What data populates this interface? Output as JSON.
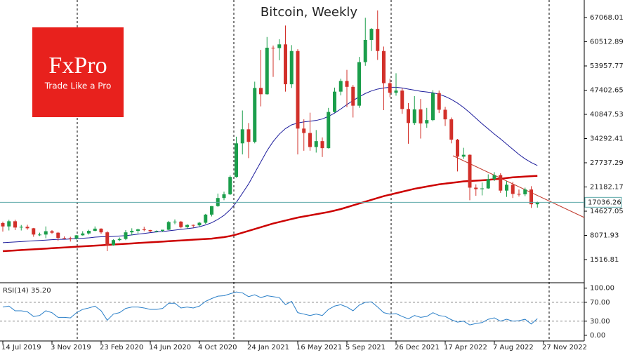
{
  "logo": {
    "brand": "FxPro",
    "tagline": "Trade Like a Pro"
  },
  "chart_data": [
    {
      "type": "candlestick",
      "title": "Bitcoin, Weekly",
      "x": [
        "14 Jul 2019",
        null,
        null,
        null,
        null,
        null,
        null,
        null,
        "3 Nov 2019",
        null,
        null,
        null,
        null,
        null,
        null,
        null,
        "23 Feb 2020",
        null,
        null,
        null,
        null,
        null,
        null,
        null,
        "14 Jun 2020",
        null,
        null,
        null,
        null,
        null,
        null,
        null,
        "4 Oct 2020",
        null,
        null,
        null,
        null,
        null,
        null,
        null,
        "24 Jan 2021",
        null,
        null,
        null,
        null,
        null,
        null,
        null,
        "16 May 2021",
        null,
        null,
        null,
        null,
        null,
        null,
        null,
        "5 Sep 2021",
        null,
        null,
        null,
        null,
        null,
        null,
        null,
        "26 Dec 2021",
        null,
        null,
        null,
        null,
        null,
        null,
        null,
        "17 Apr 2022",
        null,
        null,
        null,
        null,
        null,
        null,
        null,
        "7 Aug 2022",
        null,
        null,
        null,
        null,
        null,
        null,
        null,
        "27 Nov 2022"
      ],
      "open": [
        11400,
        10500,
        11900,
        10200,
        10400,
        10000,
        8300,
        8300,
        9200,
        8800,
        7400,
        7300,
        7200,
        8100,
        8600,
        9300,
        9900,
        8900,
        5400,
        6800,
        7100,
        8900,
        9300,
        9700,
        9500,
        9200,
        9300,
        9600,
        11700,
        11800,
        10300,
        10900,
        10800,
        11500,
        13700,
        16000,
        18200,
        19200,
        23900,
        33000,
        36800,
        33400,
        48000,
        46300,
        58900,
        58800,
        59800,
        49000,
        58000,
        37000,
        35800,
        32000,
        33600,
        31700,
        41500,
        47000,
        49900,
        48300,
        43200,
        55000,
        61000,
        64000,
        58000,
        49300,
        46700,
        47300,
        42300,
        38500,
        42200,
        38400,
        39300,
        46600,
        42100,
        39500,
        34000,
        29400,
        29900,
        21000,
        20600,
        20800,
        23300,
        24400,
        20200,
        21800,
        19300,
        19200,
        20500,
        16500,
        null
      ],
      "high": [
        11800,
        12300,
        12300,
        10900,
        10950,
        10100,
        8800,
        10500,
        9500,
        9000,
        7800,
        7700,
        8200,
        9200,
        9600,
        10500,
        10000,
        9200,
        7000,
        7500,
        9500,
        10000,
        9900,
        10400,
        9600,
        9400,
        9500,
        12000,
        12400,
        12000,
        11100,
        11000,
        11700,
        13900,
        16000,
        19400,
        19900,
        24300,
        34800,
        41900,
        38500,
        49700,
        58300,
        61800,
        59500,
        61200,
        64900,
        59600,
        58500,
        39500,
        41300,
        36600,
        34600,
        42600,
        48100,
        50500,
        52900,
        48800,
        56400,
        67000,
        64200,
        69000,
        59200,
        50500,
        52000,
        47900,
        43900,
        45800,
        45000,
        42600,
        47400,
        47300,
        42900,
        40000,
        34200,
        31800,
        30000,
        21900,
        22400,
        24600,
        25200,
        24900,
        22800,
        22600,
        20500,
        21000,
        21400,
        17200,
        null
      ],
      "low": [
        9100,
        9400,
        9500,
        9400,
        9600,
        7700,
        7900,
        7300,
        8500,
        6600,
        7100,
        6400,
        6900,
        8000,
        8300,
        9200,
        8500,
        3800,
        5300,
        6500,
        6800,
        8100,
        8600,
        9200,
        8900,
        8900,
        9000,
        9500,
        11100,
        10000,
        9900,
        10200,
        10500,
        11200,
        13200,
        15800,
        17600,
        19000,
        23700,
        30000,
        29000,
        33000,
        43000,
        46200,
        51000,
        55500,
        47000,
        48000,
        30000,
        31000,
        31000,
        30500,
        29300,
        31600,
        41300,
        46000,
        42800,
        40000,
        42600,
        54000,
        58000,
        55600,
        42000,
        45500,
        45900,
        41000,
        32900,
        38000,
        34300,
        37200,
        39000,
        41200,
        37700,
        33000,
        25400,
        28800,
        17600,
        18800,
        18900,
        20700,
        22800,
        19600,
        18500,
        18200,
        18600,
        18700,
        15500,
        15600,
        null
      ],
      "close": [
        10500,
        11900,
        10200,
        10400,
        10000,
        8300,
        8300,
        9200,
        8800,
        7400,
        7300,
        7200,
        8100,
        8600,
        9300,
        9900,
        8900,
        5400,
        6800,
        7100,
        8900,
        9300,
        9700,
        9500,
        9200,
        9300,
        9600,
        11700,
        11800,
        10300,
        10900,
        10800,
        11500,
        13700,
        16000,
        18200,
        19200,
        23900,
        33000,
        36800,
        33400,
        48000,
        46300,
        58900,
        58800,
        59800,
        49000,
        58000,
        37000,
        35800,
        32000,
        33600,
        31700,
        41500,
        47000,
        49900,
        48300,
        43200,
        55000,
        61000,
        64000,
        58000,
        49300,
        46700,
        47300,
        42300,
        38500,
        42200,
        38400,
        39300,
        46600,
        42100,
        39500,
        34000,
        29400,
        29900,
        21000,
        20600,
        20800,
        23300,
        24400,
        20200,
        21800,
        19300,
        19200,
        20500,
        16500,
        17036.26,
        null
      ],
      "up_color": "#1b9e4b",
      "down_color": "#d2302a",
      "series": [
        {
          "color": "#1c1c9c",
          "values": [
            6100,
            6200,
            6300,
            6400,
            6500,
            6600,
            6700,
            6800,
            6900,
            7000,
            7000,
            7100,
            7200,
            7300,
            7400,
            7600,
            7700,
            7700,
            7800,
            7900,
            8000,
            8200,
            8400,
            8600,
            8800,
            9000,
            9100,
            9300,
            9500,
            9700,
            9900,
            10100,
            10400,
            10900,
            11500,
            12400,
            13500,
            15000,
            17000,
            19500,
            22000,
            25000,
            28000,
            31000,
            33500,
            35500,
            37000,
            38000,
            38500,
            38800,
            39000,
            39200,
            39600,
            40300,
            41200,
            42300,
            43500,
            44600,
            45600,
            46500,
            47200,
            47700,
            48000,
            48200,
            48200,
            48000,
            47700,
            47400,
            47100,
            46900,
            46700,
            46300,
            45700,
            44900,
            43900,
            42700,
            41300,
            39800,
            38300,
            36900,
            35500,
            34200,
            32800,
            31400,
            30000,
            28800,
            27800,
            27000,
            null
          ]
        },
        {
          "color": "#cc0000",
          "values": [
            3800,
            3900,
            4000,
            4100,
            4200,
            4300,
            4400,
            4500,
            4600,
            4700,
            4800,
            4900,
            5000,
            5100,
            5200,
            5300,
            5400,
            5500,
            5600,
            5700,
            5800,
            5900,
            6000,
            6100,
            6200,
            6300,
            6400,
            6500,
            6600,
            6700,
            6800,
            6900,
            7000,
            7100,
            7200,
            7400,
            7600,
            7900,
            8300,
            8800,
            9300,
            9800,
            10300,
            10800,
            11300,
            11700,
            12100,
            12500,
            12900,
            13200,
            13500,
            13800,
            14100,
            14400,
            14800,
            15200,
            15700,
            16200,
            16700,
            17200,
            17700,
            18200,
            18700,
            19100,
            19500,
            19900,
            20300,
            20700,
            21000,
            21300,
            21600,
            21900,
            22100,
            22300,
            22500,
            22700,
            22800,
            22900,
            23000,
            23100,
            23300,
            23400,
            23600,
            23800,
            23900,
            24000,
            24100,
            24200,
            null
          ]
        }
      ],
      "current_price": 17036.26,
      "current_price_color": "#5ea9a9",
      "ylim": [
        -4180,
        71820
      ],
      "yticks": [
        67068.01,
        60512.89,
        53957.77,
        47402.65,
        40847.53,
        34292.41,
        27737.29,
        21182.17,
        14627.05,
        8071.93,
        1516.81
      ]
    },
    {
      "type": "line",
      "label": "RSI(14) 35.20",
      "color": "#2a7fc8",
      "values": [
        60,
        62,
        52,
        52,
        50,
        40,
        42,
        52,
        48,
        38,
        38,
        37,
        48,
        55,
        58,
        62,
        52,
        32,
        45,
        48,
        57,
        60,
        60,
        58,
        55,
        55,
        57,
        68,
        68,
        58,
        60,
        58,
        62,
        72,
        78,
        83,
        84,
        88,
        92,
        90,
        82,
        86,
        80,
        84,
        82,
        80,
        65,
        72,
        48,
        45,
        42,
        45,
        42,
        55,
        62,
        65,
        60,
        52,
        64,
        70,
        71,
        60,
        48,
        45,
        46,
        40,
        35,
        42,
        38,
        40,
        48,
        42,
        40,
        33,
        28,
        30,
        22,
        25,
        27,
        34,
        37,
        30,
        34,
        30,
        31,
        34,
        24,
        35.2,
        null
      ],
      "ylim": [
        -12,
        110
      ],
      "yticks": [
        {
          "value": 100,
          "label": "100.00"
        },
        {
          "value": 70,
          "label": "70.00"
        },
        {
          "value": 30,
          "label": "30.00"
        },
        {
          "value": 0,
          "label": "0.00"
        }
      ],
      "grid": true
    }
  ]
}
